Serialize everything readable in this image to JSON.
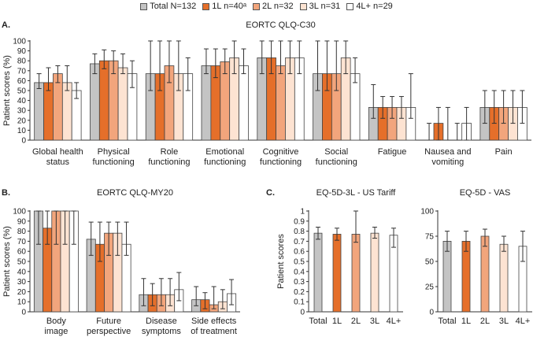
{
  "legend": [
    {
      "label": "Total N=132",
      "color": "#c4c4c4"
    },
    {
      "label": "1L n=40ᵃ",
      "color": "#e56f2a"
    },
    {
      "label": "2L n=32",
      "color": "#f2a57c"
    },
    {
      "label": "3L n=31",
      "color": "#fde3d2"
    },
    {
      "label": "4L+ n=29",
      "color": "#ffffff"
    }
  ],
  "chart_data": [
    {
      "panel": "A.",
      "type": "bar",
      "title": "EORTC QLQ-C30",
      "ylabel": "Patient scores (%)",
      "ylim": [
        0,
        100
      ],
      "yticks": [
        "0",
        "10",
        "20",
        "30",
        "40",
        "50",
        "60",
        "70",
        "80",
        "90",
        "100"
      ],
      "categories": [
        "Global health status",
        "Physical functioning",
        "Role functioning",
        "Emotional functioning",
        "Cognitive functioning",
        "Social functioning",
        "Fatigue",
        "Nausea and vomiting",
        "Pain"
      ],
      "series": [
        {
          "name": "Total N=132",
          "values": [
            58,
            77,
            67,
            75,
            83,
            67,
            33,
            0,
            33
          ],
          "err_low": [
            52,
            67,
            50,
            67,
            67,
            50,
            22,
            0,
            17
          ],
          "err_high": [
            67,
            87,
            100,
            92,
            100,
            100,
            56,
            17,
            50
          ]
        },
        {
          "name": "1L n=40ᵃ",
          "values": [
            58,
            80,
            67,
            75,
            83,
            67,
            33,
            17,
            33
          ],
          "err_low": [
            50,
            72,
            50,
            63,
            67,
            50,
            22,
            0,
            17
          ],
          "err_high": [
            73,
            91,
            100,
            92,
            100,
            100,
            44,
            33,
            50
          ]
        },
        {
          "name": "2L n=32",
          "values": [
            67,
            80,
            75,
            79,
            75,
            67,
            33,
            0,
            33
          ],
          "err_low": [
            58,
            67,
            58,
            67,
            67,
            50,
            22,
            0,
            17
          ],
          "err_high": [
            75,
            90,
            100,
            92,
            100,
            100,
            44,
            33,
            50
          ]
        },
        {
          "name": "3L n=31",
          "values": [
            58,
            73,
            67,
            83,
            83,
            83,
            33,
            0,
            33
          ],
          "err_low": [
            50,
            67,
            50,
            67,
            67,
            67,
            22,
            0,
            17
          ],
          "err_high": [
            75,
            87,
            100,
            100,
            100,
            100,
            44,
            17,
            50
          ]
        },
        {
          "name": "4L+ n=29",
          "values": [
            50,
            67,
            67,
            75,
            83,
            67,
            33,
            17,
            33
          ],
          "err_low": [
            42,
            53,
            50,
            67,
            67,
            58,
            22,
            0,
            17
          ],
          "err_high": [
            58,
            80,
            83,
            92,
            100,
            83,
            67,
            33,
            50
          ]
        }
      ]
    },
    {
      "panel": "B.",
      "type": "bar",
      "title": "EORTC QLQ-MY20",
      "ylabel": "Patient scores (%)",
      "ylim": [
        0,
        100
      ],
      "yticks": [
        "0",
        "10",
        "20",
        "30",
        "40",
        "50",
        "60",
        "70",
        "80",
        "90",
        "100"
      ],
      "categories": [
        "Body image",
        "Future perspective",
        "Disease symptoms",
        "Side effects of treatment"
      ],
      "series": [
        {
          "name": "Total N=132",
          "values": [
            100,
            72,
            17,
            12
          ],
          "err_low": [
            67,
            56,
            6,
            6
          ],
          "err_high": [
            100,
            89,
            33,
            25
          ]
        },
        {
          "name": "1L n=40ᵃ",
          "values": [
            83,
            67,
            17,
            12
          ],
          "err_low": [
            67,
            50,
            6,
            3
          ],
          "err_high": [
            100,
            89,
            28,
            19
          ]
        },
        {
          "name": "2L n=32",
          "values": [
            100,
            78,
            17,
            7
          ],
          "err_low": [
            67,
            56,
            6,
            3
          ],
          "err_high": [
            100,
            89,
            33,
            25
          ]
        },
        {
          "name": "3L n=31",
          "values": [
            100,
            78,
            17,
            10
          ],
          "err_low": [
            67,
            56,
            6,
            3
          ],
          "err_high": [
            100,
            89,
            33,
            22
          ]
        },
        {
          "name": "4L+ n=29",
          "values": [
            100,
            67,
            22,
            18
          ],
          "err_low": [
            67,
            56,
            11,
            7
          ],
          "err_high": [
            100,
            89,
            39,
            32
          ]
        }
      ]
    },
    {
      "panel": "C.",
      "type": "bar",
      "title": "EQ-5D-3L - US Tariff",
      "ylabel": "Patient scores",
      "ylim": [
        0,
        1
      ],
      "yticks": [
        "0",
        "0.1",
        "0.2",
        "0.3",
        "0.4",
        "0.5",
        "0.6",
        "0.7",
        "0.8",
        "0.9",
        "1"
      ],
      "categories": [
        "Total",
        "1L",
        "2L",
        "3L",
        "4L+"
      ],
      "values": [
        0.78,
        0.77,
        0.77,
        0.78,
        0.76
      ],
      "err_low": [
        0.72,
        0.71,
        0.69,
        0.73,
        0.64
      ],
      "err_high": [
        0.84,
        0.83,
        1.0,
        0.84,
        0.83
      ]
    },
    {
      "panel": "",
      "type": "bar",
      "title": "EQ-5D - VAS",
      "ylabel": "",
      "ylim": [
        0,
        100
      ],
      "yticks": [
        "0",
        "25",
        "50",
        "75",
        "100"
      ],
      "categories": [
        "Total",
        "1L",
        "2L",
        "3L",
        "4L+"
      ],
      "values": [
        70,
        70,
        75,
        67,
        65
      ],
      "err_low": [
        60,
        60,
        65,
        60,
        50
      ],
      "err_high": [
        80,
        80,
        82,
        75,
        80
      ]
    }
  ]
}
